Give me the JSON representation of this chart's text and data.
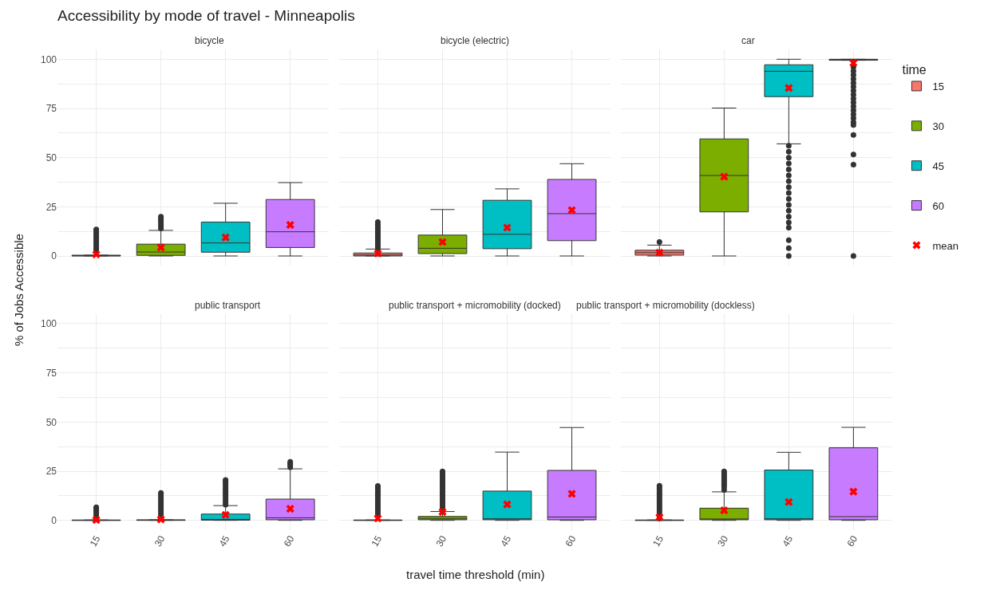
{
  "chart_data": [
    {
      "type": "box",
      "title": "bicycle",
      "annotations": [
        "Accessibility by mode of travel - Minneapolis"
      ],
      "ylabel": "% of Jobs Accessible",
      "categories": [
        "15",
        "30",
        "45",
        "60"
      ],
      "ylim": [
        -5,
        105
      ],
      "yticks": [
        0,
        {
          "value": 12.5,
          "label": null
        },
        25,
        {
          "value": 37.5,
          "label": null
        },
        50,
        {
          "value": 62.5,
          "label": null
        },
        75,
        {
          "value": 87.5,
          "label": null
        },
        100
      ],
      "grid": true,
      "legend": "right",
      "tick_labels": "y",
      "series": [
        {
          "name": "15",
          "color": "#f8766d",
          "boxes": [
            {
              "low": 0,
              "q1": 0,
              "median": 0.1,
              "q3": 0.4,
              "high": 0.4,
              "outliers": [
                2,
                3,
                4,
                5,
                6,
                7,
                8,
                9,
                10,
                11,
                12,
                13,
                13.5
              ]
            },
            null,
            null,
            null
          ]
        },
        {
          "name": "30",
          "color": "#7cae00",
          "boxes": [
            null,
            {
              "low": 0,
              "q1": 0.3,
              "median": 2,
              "q3": 6,
              "high": 13,
              "outliers": [
                14,
                15,
                16,
                17,
                18,
                19,
                20
              ]
            },
            null,
            null
          ]
        },
        {
          "name": "45",
          "color": "#00bfc4",
          "boxes": [
            null,
            null,
            {
              "low": 0,
              "q1": 1.9,
              "median": 6.6,
              "q3": 17.2,
              "high": 26.8
            },
            null
          ]
        },
        {
          "name": "60",
          "color": "#c77cff",
          "boxes": [
            null,
            null,
            null,
            {
              "low": 0,
              "q1": 4.3,
              "median": 12.3,
              "q3": 28.7,
              "high": 37.3
            }
          ]
        },
        {
          "name": "mean",
          "type": "scatter",
          "marker": "cross",
          "color": "#ff0000",
          "x": [
            "15",
            "30",
            "45",
            "60"
          ],
          "values": [
            0.8,
            4.3,
            9.4,
            15.8
          ]
        }
      ]
    },
    {
      "type": "box",
      "title": "bicycle (electric)",
      "categories": [
        "15",
        "30",
        "45",
        "60"
      ],
      "ylim": [
        -5,
        105
      ],
      "yticks": [
        0,
        {
          "value": 12.5,
          "label": null
        },
        25,
        {
          "value": 37.5,
          "label": null
        },
        50,
        {
          "value": 62.5,
          "label": null
        },
        75,
        {
          "value": 87.5,
          "label": null
        },
        100
      ],
      "grid": true,
      "legend": "right",
      "tick_labels": false,
      "series": [
        {
          "name": "15",
          "color": "#f8766d",
          "boxes": [
            {
              "low": 0,
              "q1": 0,
              "median": 0.5,
              "q3": 1.5,
              "high": 3.5,
              "outliers": [
                4,
                5,
                6,
                7,
                8,
                9,
                10,
                11,
                12,
                13,
                14,
                15,
                16,
                17.2
              ]
            },
            null,
            null,
            null
          ]
        },
        {
          "name": "30",
          "color": "#7cae00",
          "boxes": [
            null,
            {
              "low": 0,
              "q1": 1.2,
              "median": 3.9,
              "q3": 10.6,
              "high": 23.6
            },
            null,
            null
          ]
        },
        {
          "name": "45",
          "color": "#00bfc4",
          "boxes": [
            null,
            null,
            {
              "low": 0,
              "q1": 3.7,
              "median": 11,
              "q3": 28.3,
              "high": 34.1
            },
            null
          ]
        },
        {
          "name": "60",
          "color": "#c77cff",
          "boxes": [
            null,
            null,
            null,
            {
              "low": 0,
              "q1": 7.8,
              "median": 21.5,
              "q3": 38.9,
              "high": 46.9
            }
          ]
        },
        {
          "name": "mean",
          "type": "scatter",
          "marker": "cross",
          "color": "#ff0000",
          "x": [
            "15",
            "30",
            "45",
            "60"
          ],
          "values": [
            1.3,
            7.1,
            14.4,
            23.3
          ]
        }
      ]
    },
    {
      "type": "box",
      "title": "car",
      "categories": [
        "15",
        "30",
        "45",
        "60"
      ],
      "ylim": [
        -5,
        105
      ],
      "yticks": [
        0,
        {
          "value": 12.5,
          "label": null
        },
        25,
        {
          "value": 37.5,
          "label": null
        },
        50,
        {
          "value": 62.5,
          "label": null
        },
        75,
        {
          "value": 87.5,
          "label": null
        },
        100
      ],
      "grid": true,
      "legend": "right",
      "legend_title": "time",
      "tick_labels": false,
      "series": [
        {
          "name": "15",
          "color": "#f8766d",
          "boxes": [
            {
              "low": 0,
              "q1": 0.4,
              "median": 1.7,
              "q3": 2.9,
              "high": 5.5,
              "outliers": [
                7.1
              ]
            },
            null,
            null,
            null
          ]
        },
        {
          "name": "30",
          "color": "#7cae00",
          "boxes": [
            null,
            {
              "low": 0,
              "q1": 22.4,
              "median": 40.9,
              "q3": 59.5,
              "high": 75.2
            },
            null,
            null
          ]
        },
        {
          "name": "45",
          "color": "#00bfc4",
          "boxes": [
            null,
            null,
            {
              "low": 57,
              "q1": 81,
              "median": 93.9,
              "q3": 97.2,
              "high": 100,
              "outliers": [
                56,
                53,
                50,
                47,
                44,
                41,
                38,
                35,
                32,
                29,
                26,
                23,
                20,
                17,
                14.4,
                8,
                4,
                0
              ]
            },
            null
          ]
        },
        {
          "name": "60",
          "color": "#c77cff",
          "boxes": [
            null,
            null,
            null,
            {
              "low": 99.5,
              "q1": 99.5,
              "median": 100,
              "q3": 100,
              "high": 100,
              "outliers": [
                96,
                94,
                92,
                90,
                88,
                86,
                84,
                82,
                80,
                78,
                76,
                74,
                72,
                70,
                68,
                66.6,
                61.5,
                51.6,
                46.4,
                0
              ]
            }
          ]
        },
        {
          "name": "mean",
          "type": "scatter",
          "marker": "cross",
          "color": "#ff0000",
          "x": [
            "15",
            "30",
            "45",
            "60"
          ],
          "values": [
            1.7,
            40.3,
            85.4,
            98.1
          ]
        }
      ]
    },
    {
      "type": "box",
      "title": "public transport",
      "categories": [
        "15",
        "30",
        "45",
        "60"
      ],
      "ylim": [
        -5,
        105
      ],
      "yticks": [
        0,
        {
          "value": 12.5,
          "label": null
        },
        25,
        {
          "value": 37.5,
          "label": null
        },
        50,
        {
          "value": 62.5,
          "label": null
        },
        75,
        {
          "value": 87.5,
          "label": null
        },
        100
      ],
      "grid": true,
      "legend": "right",
      "series": [
        {
          "name": "15",
          "color": "#f8766d",
          "boxes": [
            {
              "low": 0,
              "q1": 0,
              "median": 0,
              "q3": 0.2,
              "high": 0.2,
              "outliers": [
                1,
                2,
                3,
                4,
                5,
                6,
                6.7
              ]
            },
            null,
            null,
            null
          ]
        },
        {
          "name": "30",
          "color": "#7cae00",
          "boxes": [
            null,
            {
              "low": 0,
              "q1": 0,
              "median": 0.1,
              "q3": 0.3,
              "high": 0.3,
              "outliers": [
                1,
                2,
                3,
                4,
                5,
                6,
                7,
                8,
                9,
                10,
                11,
                12,
                13,
                14
              ]
            },
            null,
            null
          ]
        },
        {
          "name": "45",
          "color": "#00bfc4",
          "boxes": [
            null,
            null,
            {
              "low": 0,
              "q1": 0.1,
              "median": 0.4,
              "q3": 3.2,
              "high": 7.5,
              "outliers": [
                8,
                9,
                10,
                11,
                12,
                13,
                14,
                15,
                16,
                17,
                18,
                19,
                20,
                20.5
              ]
            },
            null
          ]
        },
        {
          "name": "60",
          "color": "#c77cff",
          "boxes": [
            null,
            null,
            null,
            {
              "low": 0,
              "q1": 0.3,
              "median": 1.3,
              "q3": 10.8,
              "high": 26.2,
              "outliers": [
                27,
                28,
                29,
                29.8
              ]
            }
          ]
        },
        {
          "name": "mean",
          "type": "scatter",
          "marker": "cross",
          "color": "#ff0000",
          "x": [
            "15",
            "30",
            "45",
            "60"
          ],
          "values": [
            0.2,
            0.5,
            2.8,
            5.9
          ]
        }
      ]
    },
    {
      "type": "box",
      "title": "public transport + micromobility (docked)",
      "xlabel": "travel time threshold (min)",
      "categories": [
        "15",
        "30",
        "45",
        "60"
      ],
      "ylim": [
        -5,
        105
      ],
      "yticks": [
        0,
        {
          "value": 12.5,
          "label": null
        },
        25,
        {
          "value": 37.5,
          "label": null
        },
        50,
        {
          "value": 62.5,
          "label": null
        },
        75,
        {
          "value": 87.5,
          "label": null
        },
        100
      ],
      "grid": true,
      "legend": "right",
      "tick_labels": "x",
      "series": [
        {
          "name": "15",
          "color": "#f8766d",
          "boxes": [
            {
              "low": 0,
              "q1": 0,
              "median": 0,
              "q3": 0.2,
              "high": 0.2,
              "outliers": [
                3,
                4,
                5,
                6,
                7,
                8,
                9,
                10,
                11,
                12,
                13,
                14,
                15,
                16,
                17,
                17.5
              ]
            },
            null,
            null,
            null
          ]
        },
        {
          "name": "30",
          "color": "#7cae00",
          "boxes": [
            null,
            {
              "low": 0,
              "q1": 0.3,
              "median": 1,
              "q3": 2,
              "high": 4.5,
              "outliers": [
                5,
                6,
                7,
                8,
                9,
                10,
                11,
                12,
                13,
                14,
                15,
                16,
                17,
                18,
                19,
                20,
                21,
                22,
                23,
                24,
                24.9
              ]
            },
            null,
            null
          ]
        },
        {
          "name": "45",
          "color": "#00bfc4",
          "boxes": [
            null,
            null,
            {
              "low": 0,
              "q1": 0.3,
              "median": 0.8,
              "q3": 14.9,
              "high": 34.7
            },
            null
          ]
        },
        {
          "name": "60",
          "color": "#c77cff",
          "boxes": [
            null,
            null,
            null,
            {
              "low": 0,
              "q1": 0.3,
              "median": 1.7,
              "q3": 25.4,
              "high": 47.2
            }
          ]
        },
        {
          "name": "mean",
          "type": "scatter",
          "marker": "cross",
          "color": "#ff0000",
          "x": [
            "15",
            "30",
            "45",
            "60"
          ],
          "values": [
            1,
            4.3,
            8.1,
            13.5
          ]
        }
      ]
    },
    {
      "type": "box",
      "title": "public transport + micromobility (dockless)",
      "categories": [
        "15",
        "30",
        "45",
        "60"
      ],
      "ylim": [
        -5,
        105
      ],
      "yticks": [
        0,
        {
          "value": 12.5,
          "label": null
        },
        25,
        {
          "value": 37.5,
          "label": null
        },
        50,
        {
          "value": 62.5,
          "label": null
        },
        75,
        {
          "value": 87.5,
          "label": null
        },
        100
      ],
      "grid": true,
      "legend": "right",
      "tick_labels": "x",
      "series": [
        {
          "name": "15",
          "color": "#f8766d",
          "boxes": [
            {
              "low": 0,
              "q1": 0,
              "median": 0,
              "q3": 0.2,
              "high": 0.2,
              "outliers": [
                1,
                2,
                3,
                4,
                5,
                6,
                7,
                8,
                9,
                10,
                11,
                12,
                13,
                14,
                15,
                16,
                17,
                17.6
              ]
            },
            null,
            null,
            null
          ]
        },
        {
          "name": "30",
          "color": "#7cae00",
          "boxes": [
            null,
            {
              "low": 0,
              "q1": 0.3,
              "median": 0.6,
              "q3": 6.2,
              "high": 14.5,
              "outliers": [
                15.5,
                17,
                18,
                19,
                20,
                21,
                22,
                23,
                24,
                24.9
              ]
            },
            null,
            null
          ]
        },
        {
          "name": "45",
          "color": "#00bfc4",
          "boxes": [
            null,
            null,
            {
              "low": 0,
              "q1": 0.3,
              "median": 0.8,
              "q3": 25.6,
              "high": 34.6
            },
            null
          ]
        },
        {
          "name": "60",
          "color": "#c77cff",
          "boxes": [
            null,
            null,
            null,
            {
              "low": 0,
              "q1": 0.3,
              "median": 1.9,
              "q3": 36.9,
              "high": 47.3
            }
          ]
        },
        {
          "name": "mean",
          "type": "scatter",
          "marker": "cross",
          "color": "#ff0000",
          "x": [
            "15",
            "30",
            "45",
            "60"
          ],
          "values": [
            1.6,
            5.1,
            9.3,
            14.6
          ]
        }
      ]
    }
  ]
}
